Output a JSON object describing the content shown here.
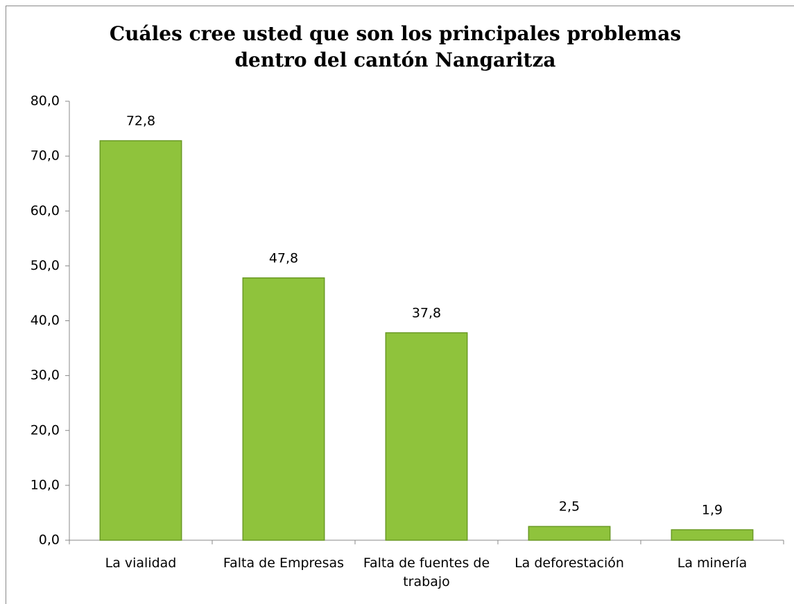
{
  "chart_data": {
    "type": "bar",
    "title": "Cuáles cree usted que son los principales problemas dentro del cantón Nangaritza",
    "categories": [
      "La vialidad",
      "Falta de Empresas",
      "Falta de fuentes de trabajo",
      "La deforestación",
      "La minería"
    ],
    "values": [
      72.8,
      47.8,
      37.8,
      2.5,
      1.9
    ],
    "value_labels": [
      "72,8",
      "47,8",
      "37,8",
      "2,5",
      "1,9"
    ],
    "color": "#8fc33c",
    "ylim": [
      0,
      80
    ],
    "yticks": [
      {
        "value": 0,
        "label": "0,0"
      },
      {
        "value": 10,
        "label": "10,0"
      },
      {
        "value": 20,
        "label": "20,0"
      },
      {
        "value": 30,
        "label": "30,0"
      },
      {
        "value": 40,
        "label": "40,0"
      },
      {
        "value": 50,
        "label": "50,0"
      },
      {
        "value": 60,
        "label": "60,0"
      },
      {
        "value": 70,
        "label": "70,0"
      },
      {
        "value": 80,
        "label": "80,0"
      }
    ],
    "grid": false
  }
}
